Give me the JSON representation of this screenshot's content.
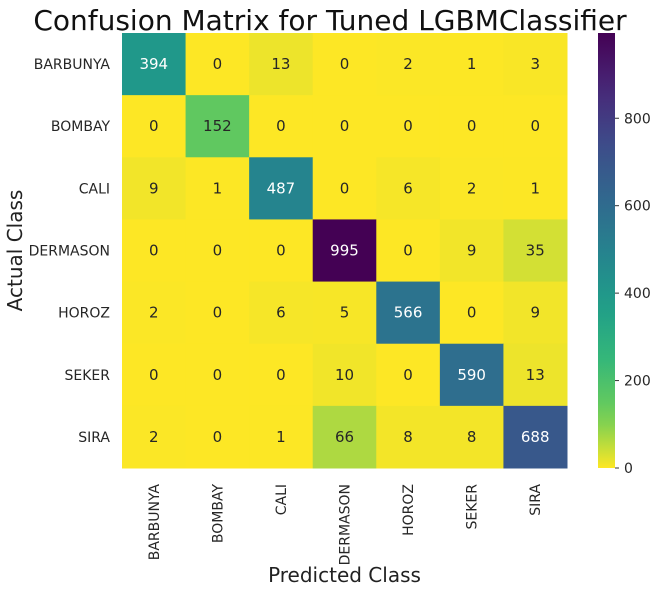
{
  "chart_data": {
    "type": "heatmap",
    "title": "Confusion Matrix for Tuned LGBMClassifier",
    "xlabel": "Predicted Class",
    "ylabel": "Actual Class",
    "x_categories": [
      "BARBUNYA",
      "BOMBAY",
      "CALI",
      "DERMASON",
      "HOROZ",
      "SEKER",
      "SIRA"
    ],
    "y_categories": [
      "BARBUNYA",
      "BOMBAY",
      "CALI",
      "DERMASON",
      "HOROZ",
      "SEKER",
      "SIRA"
    ],
    "values": [
      [
        394,
        0,
        13,
        0,
        2,
        1,
        3
      ],
      [
        0,
        152,
        0,
        0,
        0,
        0,
        0
      ],
      [
        9,
        1,
        487,
        0,
        6,
        2,
        1
      ],
      [
        0,
        0,
        0,
        995,
        0,
        9,
        35
      ],
      [
        2,
        0,
        6,
        5,
        566,
        0,
        9
      ],
      [
        0,
        0,
        0,
        10,
        0,
        590,
        13
      ],
      [
        2,
        0,
        1,
        66,
        8,
        8,
        688
      ]
    ],
    "colormap": "viridis_r",
    "color_range": [
      0,
      995
    ],
    "colorbar_ticks": [
      0,
      200,
      400,
      600,
      800
    ]
  }
}
